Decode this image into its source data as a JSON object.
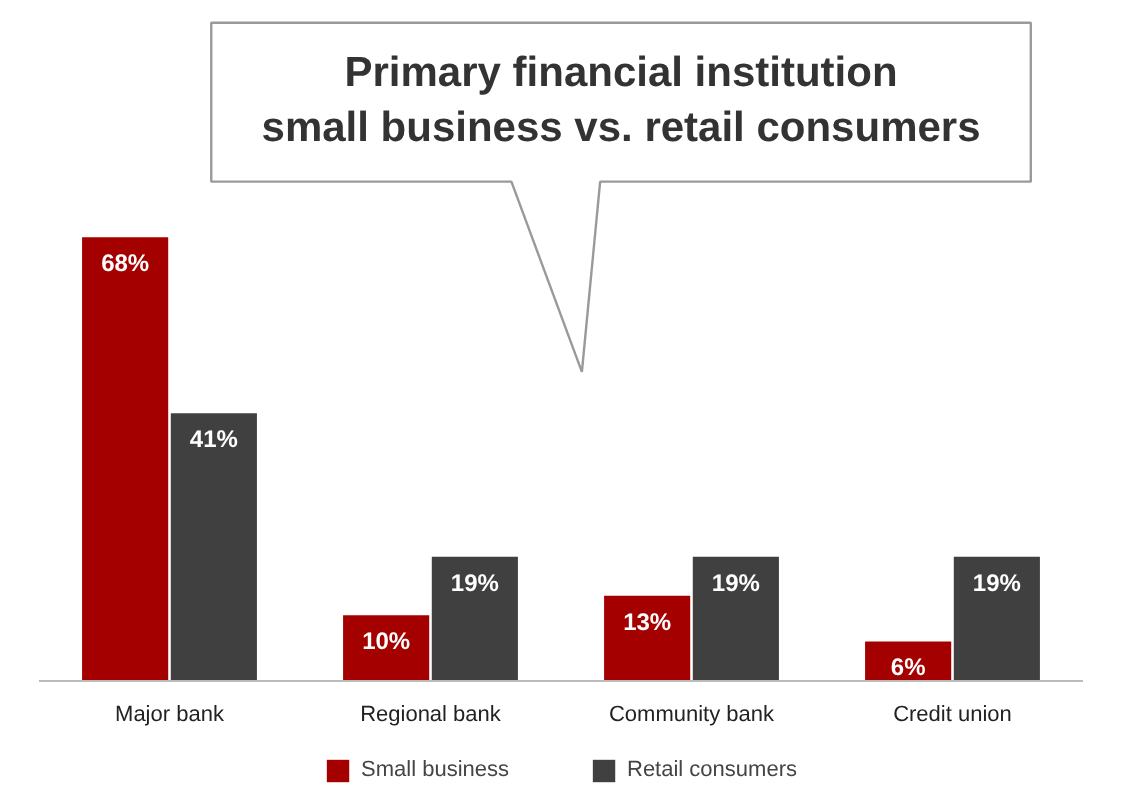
{
  "chart_data": {
    "type": "bar",
    "title": "Primary financial institution\nsmall business vs. retail consumers",
    "categories": [
      "Major bank",
      "Regional bank",
      "Community bank",
      "Credit union"
    ],
    "series": [
      {
        "name": "Small business",
        "color": "#a50000",
        "values": [
          68,
          10,
          13,
          6
        ],
        "value_labels": [
          "68%",
          "10%",
          "13%",
          "6%"
        ]
      },
      {
        "name": "Retail consumers",
        "color": "#404040",
        "values": [
          41,
          19,
          19,
          19
        ],
        "value_labels": [
          "41%",
          "19%",
          "19%",
          "19%"
        ]
      }
    ],
    "legend": "bottom"
  }
}
